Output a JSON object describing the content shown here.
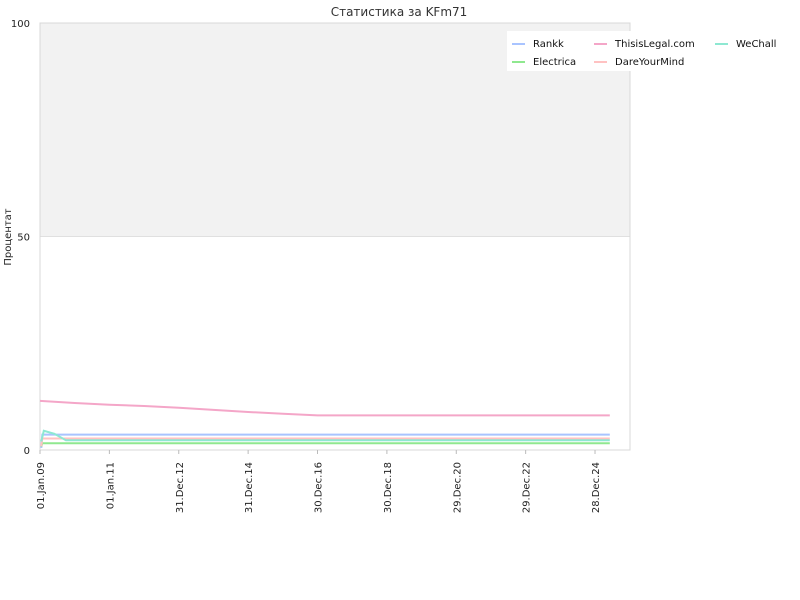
{
  "chart_data": {
    "type": "line",
    "title": "Статистика за KFm71",
    "xlabel": "",
    "ylabel": "Процентат",
    "ylim": [
      0,
      100
    ],
    "xlim": [
      "2009-01-01",
      "2025-12-31"
    ],
    "y_ticks": [
      "0",
      "50",
      "100"
    ],
    "x_ticks": [
      "01.Jan.09",
      "01.Jan.11",
      "31.Dec.12",
      "31.Dec.14",
      "30.Dec.16",
      "30.Dec.18",
      "29.Dec.20",
      "29.Dec.22",
      "28.Dec.24"
    ],
    "x_tick_dates": [
      "2009-01-01",
      "2011-01-01",
      "2012-12-31",
      "2014-12-31",
      "2016-12-30",
      "2018-12-30",
      "2020-12-29",
      "2022-12-29",
      "2024-12-28"
    ],
    "shaded_band": [
      50,
      100
    ],
    "legend_position": "top-right",
    "series": [
      {
        "name": "Rankk",
        "color": "#a9c4ff",
        "points": [
          [
            "2009-01-15",
            0.5
          ],
          [
            "2009-01-25",
            3.6
          ],
          [
            "2025-06-01",
            3.6
          ]
        ]
      },
      {
        "name": "Electrica",
        "color": "#8fe88f",
        "points": [
          [
            "2009-01-15",
            0.8
          ],
          [
            "2009-01-25",
            1.6
          ],
          [
            "2025-06-01",
            1.6
          ]
        ]
      },
      {
        "name": "ThisisLegal.com",
        "color": "#f4a6c8",
        "points": [
          [
            "2009-01-01",
            11.5
          ],
          [
            "2010-01-01",
            11.0
          ],
          [
            "2011-01-01",
            10.6
          ],
          [
            "2012-01-01",
            10.3
          ],
          [
            "2013-01-01",
            9.9
          ],
          [
            "2014-01-01",
            9.4
          ],
          [
            "2015-01-01",
            8.9
          ],
          [
            "2016-01-01",
            8.5
          ],
          [
            "2016-12-30",
            8.1
          ],
          [
            "2025-06-01",
            8.1
          ]
        ]
      },
      {
        "name": "DareYourMind",
        "color": "#ffc2c2",
        "points": [
          [
            "2009-01-15",
            0.9
          ],
          [
            "2009-01-25",
            2.7
          ],
          [
            "2025-06-01",
            2.7
          ]
        ]
      },
      {
        "name": "WeChall",
        "color": "#8ee8d2",
        "points": [
          [
            "2009-01-15",
            2.0
          ],
          [
            "2009-02-10",
            4.5
          ],
          [
            "2009-06-01",
            3.8
          ],
          [
            "2009-10-01",
            2.3
          ],
          [
            "2025-06-01",
            2.3
          ]
        ]
      }
    ]
  }
}
